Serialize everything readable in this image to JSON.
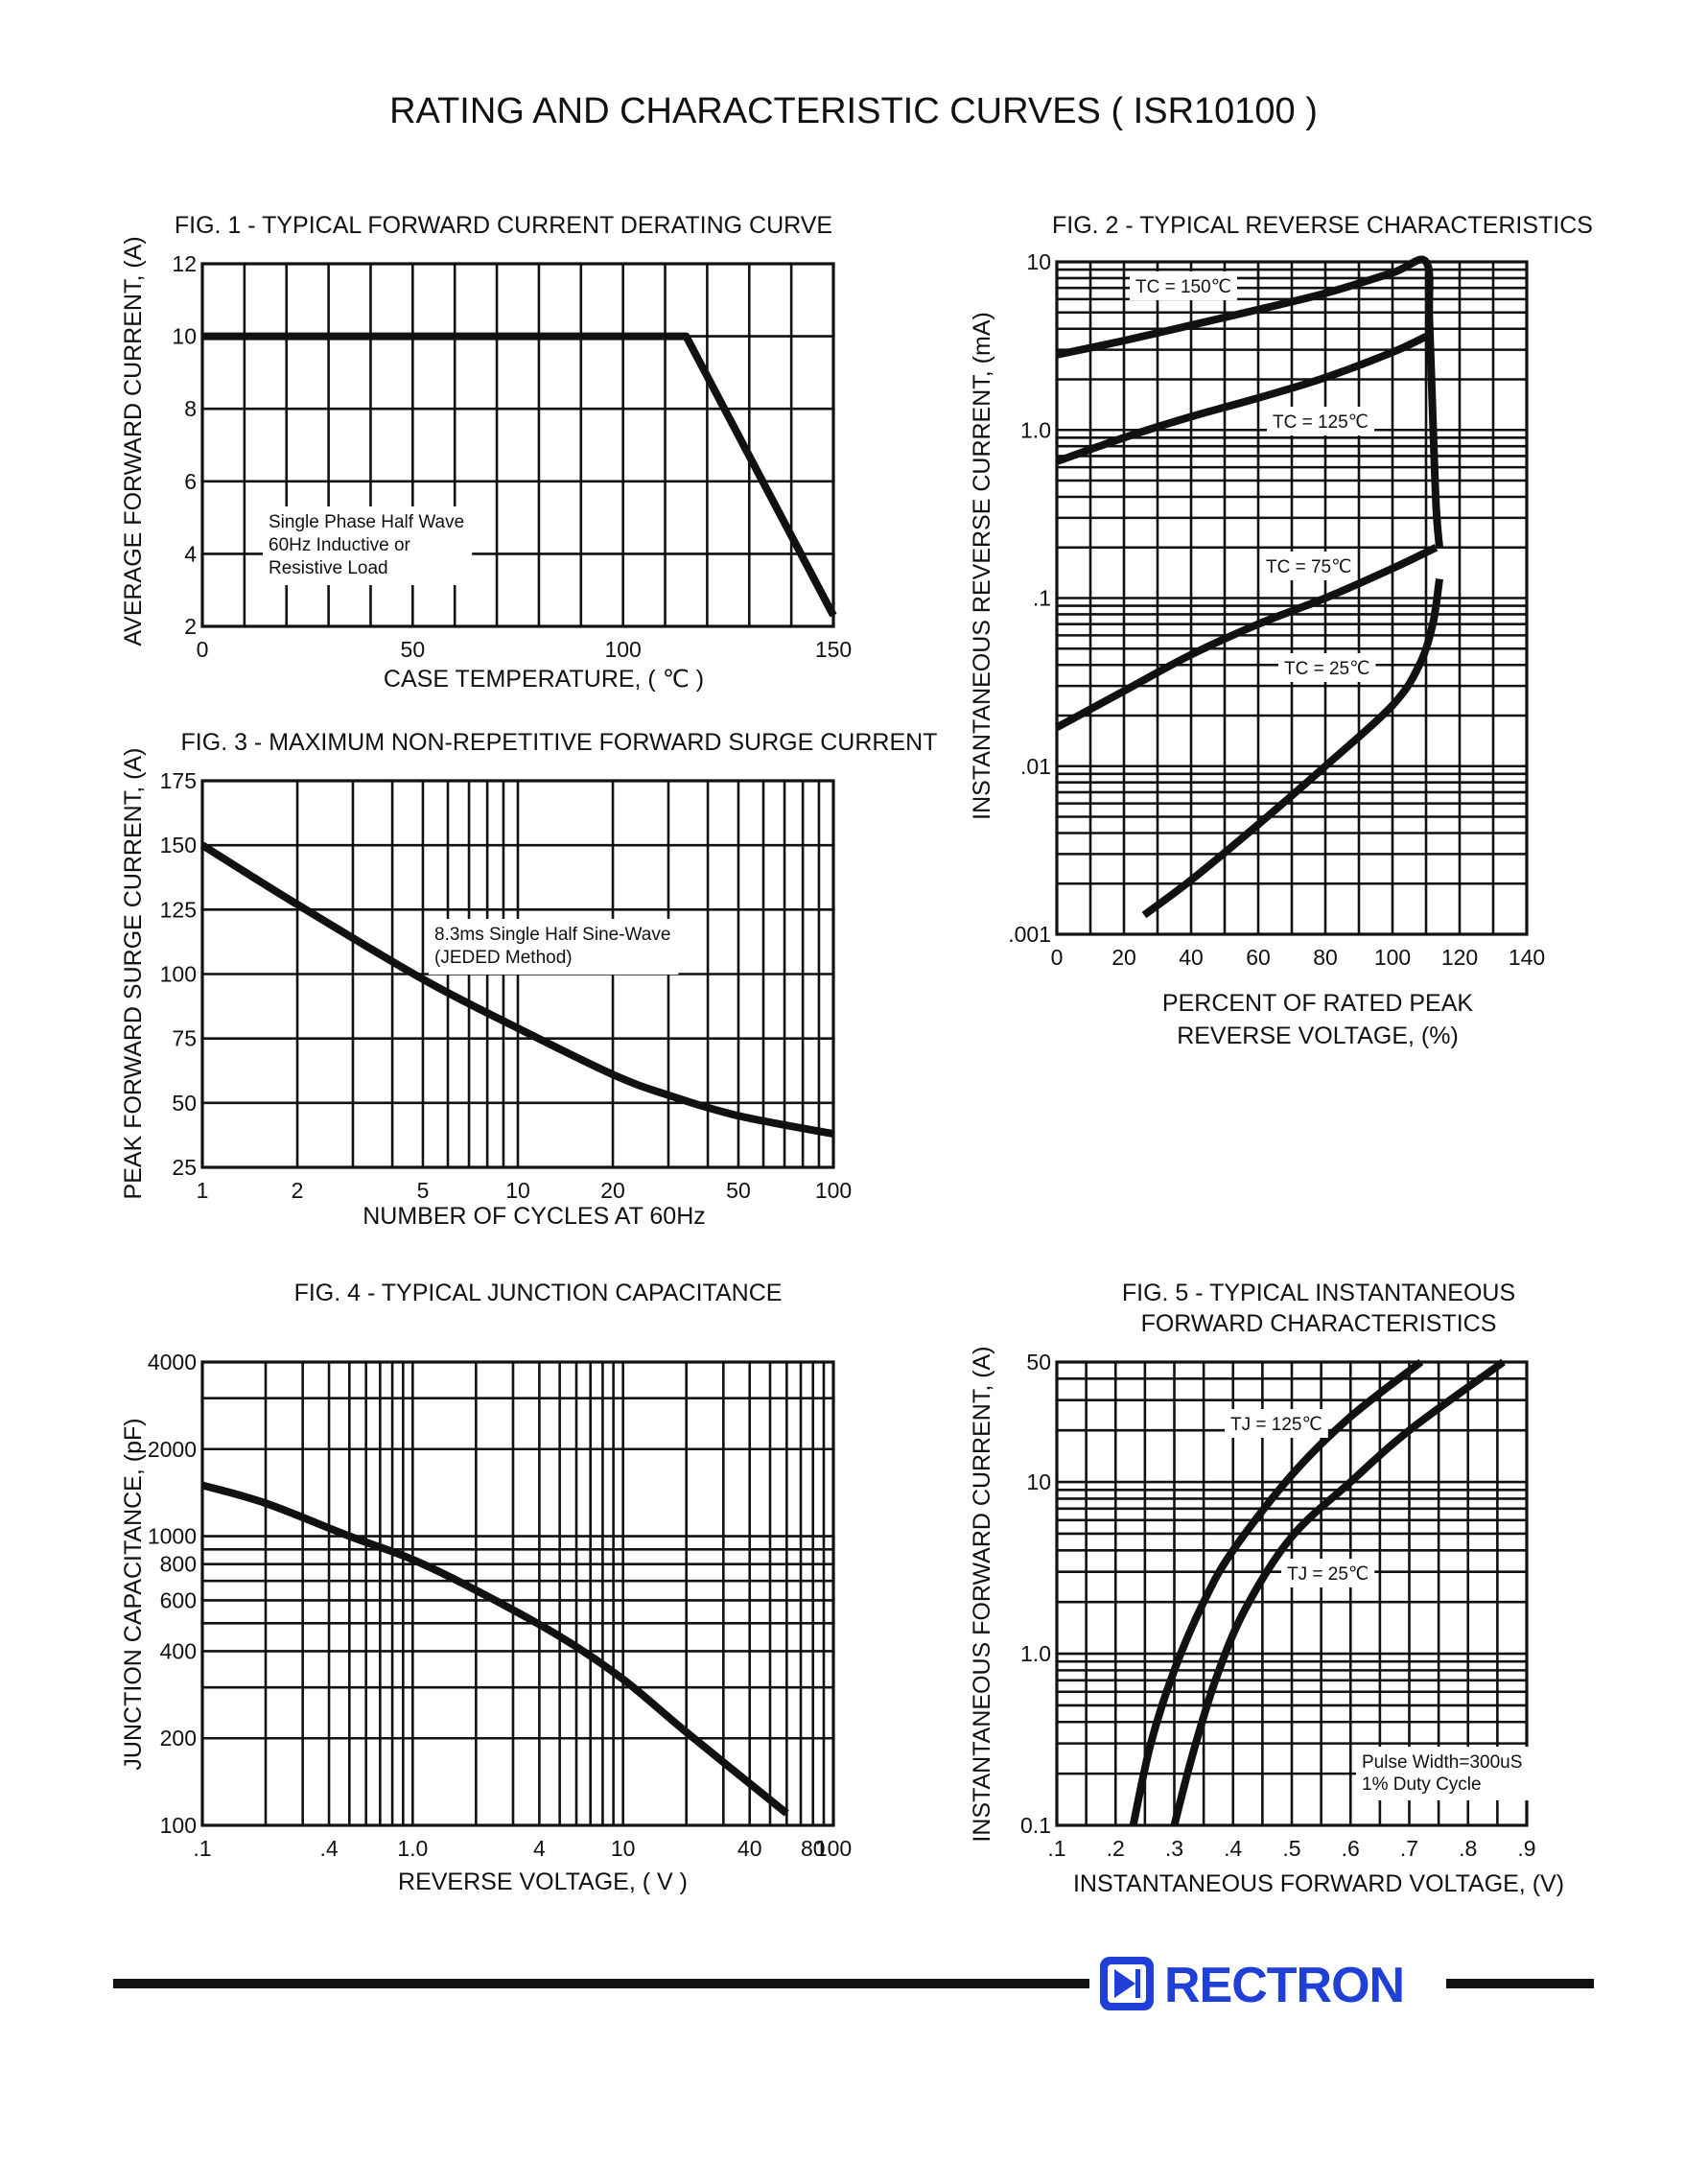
{
  "page": {
    "title": "RATING AND CHARACTERISTIC CURVES ( ISR10100 )",
    "brand": "RECTRON",
    "colors": {
      "ink": "#111111",
      "brand": "#1f3fd6",
      "paper": "#ffffff"
    }
  },
  "chart_data": [
    {
      "id": "fig1",
      "type": "line",
      "title": "FIG. 1 - TYPICAL FORWARD CURRENT DERATING CURVE",
      "xlabel": "CASE TEMPERATURE, ( ℃ )",
      "ylabel": "AVERAGE FORWARD CURRENT, (A)",
      "xscale": "linear",
      "yscale": "linear",
      "xlim": [
        0,
        150
      ],
      "ylim": [
        2,
        12
      ],
      "xticks": [
        0,
        50,
        100,
        150
      ],
      "yticks": [
        2,
        4,
        6,
        8,
        10,
        12
      ],
      "xgrid": [
        0,
        10,
        20,
        30,
        40,
        50,
        60,
        70,
        80,
        90,
        100,
        110,
        120,
        130,
        140,
        150
      ],
      "ygrid": [
        2,
        4,
        6,
        8,
        10,
        12
      ],
      "note": [
        "Single Phase Half Wave",
        "60Hz Inductive or",
        "Resistive Load"
      ],
      "series": [
        {
          "x": [
            0,
            115,
            150
          ],
          "y": [
            10,
            10,
            2.3
          ]
        }
      ]
    },
    {
      "id": "fig2",
      "type": "line",
      "title": "FIG. 2 - TYPICAL REVERSE CHARACTERISTICS",
      "xlabel": [
        "PERCENT OF RATED PEAK",
        "REVERSE VOLTAGE, (%)"
      ],
      "ylabel": "INSTANTANEOUS REVERSE CURRENT, (mA)",
      "xscale": "linear",
      "yscale": "log",
      "xlim": [
        0,
        140
      ],
      "ylim": [
        0.001,
        10
      ],
      "xticks": [
        0,
        20,
        40,
        60,
        80,
        100,
        120,
        140
      ],
      "xgrid": [
        0,
        10,
        20,
        30,
        40,
        50,
        60,
        70,
        80,
        90,
        100,
        110,
        120,
        130,
        140
      ],
      "yticks": [
        {
          "v": 10,
          "label": "10"
        },
        {
          "v": 1,
          "label": "1.0"
        },
        {
          "v": 0.1,
          "label": ".1"
        },
        {
          "v": 0.01,
          "label": ".01"
        },
        {
          "v": 0.001,
          "label": ".001"
        }
      ],
      "series": [
        {
          "name": "TC = 150℃",
          "x": [
            0,
            20,
            40,
            60,
            80,
            100,
            110,
            111,
            112,
            113,
            114
          ],
          "y": [
            2.8,
            3.4,
            4.2,
            5.2,
            6.5,
            8.6,
            10,
            4.5,
            1.2,
            0.35,
            0.2
          ]
        },
        {
          "name": "TC = 125℃",
          "x": [
            0,
            20,
            40,
            60,
            80,
            100,
            110
          ],
          "y": [
            0.65,
            0.9,
            1.2,
            1.55,
            2.05,
            2.9,
            3.6
          ]
        },
        {
          "name": "TC = 75℃",
          "x": [
            0,
            20,
            40,
            60,
            80,
            100,
            113
          ],
          "y": [
            0.017,
            0.028,
            0.046,
            0.07,
            0.1,
            0.15,
            0.2
          ]
        },
        {
          "name": "TC = 25℃",
          "x": [
            26,
            40,
            60,
            80,
            100,
            108,
            112,
            114
          ],
          "y": [
            0.0013,
            0.0021,
            0.0045,
            0.01,
            0.023,
            0.04,
            0.07,
            0.13
          ]
        }
      ]
    },
    {
      "id": "fig3",
      "type": "line",
      "title": "FIG. 3 - MAXIMUM NON-REPETITIVE FORWARD SURGE CURRENT",
      "xlabel": "NUMBER OF CYCLES AT 60Hz",
      "ylabel": "PEAK FORWARD SURGE CURRENT, (A)",
      "xscale": "log",
      "yscale": "linear",
      "xlim": [
        1,
        100
      ],
      "ylim": [
        25,
        175
      ],
      "xticks": [
        1,
        2,
        5,
        10,
        20,
        50,
        100
      ],
      "yticks": [
        25,
        50,
        75,
        100,
        125,
        150,
        175
      ],
      "note": [
        "8.3ms Single Half Sine-Wave",
        "(JEDED Method)"
      ],
      "series": [
        {
          "x": [
            1,
            2,
            5,
            10,
            20,
            30,
            50,
            100
          ],
          "y": [
            150,
            127,
            98,
            79,
            61,
            53,
            45,
            38
          ]
        }
      ]
    },
    {
      "id": "fig2b_unused",
      "type": "table",
      "values": []
    },
    {
      "id": "fig4",
      "type": "line",
      "title": "FIG. 4 - TYPICAL JUNCTION CAPACITANCE",
      "xlabel": "REVERSE VOLTAGE, ( V )",
      "ylabel": "JUNCTION CAPACITANCE, (pF)",
      "xscale": "log",
      "yscale": "log",
      "xlim": [
        0.1,
        100
      ],
      "ylim": [
        100,
        4000
      ],
      "xticks": [
        {
          "v": 0.1,
          "label": ".1"
        },
        {
          "v": 0.4,
          "label": ".4"
        },
        {
          "v": 1,
          "label": "1.0"
        },
        {
          "v": 4,
          "label": "4"
        },
        {
          "v": 10,
          "label": "10"
        },
        {
          "v": 40,
          "label": "40"
        },
        {
          "v": 80,
          "label": "80"
        },
        {
          "v": 100,
          "label": "100"
        }
      ],
      "yticks": [
        100,
        200,
        400,
        600,
        800,
        1000,
        2000,
        4000
      ],
      "series": [
        {
          "x": [
            0.1,
            0.2,
            0.5,
            1,
            2,
            5,
            10,
            20,
            60
          ],
          "y": [
            1500,
            1300,
            1000,
            830,
            650,
            450,
            320,
            210,
            110
          ]
        }
      ]
    },
    {
      "id": "fig5",
      "type": "line",
      "title": [
        "FIG. 5 - TYPICAL INSTANTANEOUS",
        "FORWARD CHARACTERISTICS"
      ],
      "xlabel": "INSTANTANEOUS FORWARD VOLTAGE, (V)",
      "ylabel": "INSTANTANEOUS FORWARD CURRENT, (A)",
      "xscale": "linear",
      "yscale": "log",
      "xlim": [
        0.1,
        0.9
      ],
      "ylim": [
        0.1,
        50
      ],
      "xticks": [
        {
          "v": 0.1,
          "label": ".1"
        },
        {
          "v": 0.2,
          "label": ".2"
        },
        {
          "v": 0.3,
          "label": ".3"
        },
        {
          "v": 0.4,
          "label": ".4"
        },
        {
          "v": 0.5,
          "label": ".5"
        },
        {
          "v": 0.6,
          "label": ".6"
        },
        {
          "v": 0.7,
          "label": ".7"
        },
        {
          "v": 0.8,
          "label": ".8"
        },
        {
          "v": 0.9,
          "label": ".9"
        }
      ],
      "xgrid": [
        0.1,
        0.15,
        0.2,
        0.25,
        0.3,
        0.35,
        0.4,
        0.45,
        0.5,
        0.55,
        0.6,
        0.65,
        0.7,
        0.75,
        0.8,
        0.85,
        0.9
      ],
      "yticks": [
        {
          "v": 0.1,
          "label": "0.1"
        },
        {
          "v": 1,
          "label": "1.0"
        },
        {
          "v": 10,
          "label": "10"
        },
        {
          "v": 50,
          "label": "50"
        }
      ],
      "note": [
        "Pulse Width=300uS",
        "1% Duty Cycle"
      ],
      "series": [
        {
          "name": "TJ = 125℃",
          "x": [
            0.23,
            0.26,
            0.3,
            0.35,
            0.4,
            0.5,
            0.6,
            0.72
          ],
          "y": [
            0.1,
            0.3,
            0.8,
            2,
            4,
            11,
            24,
            50
          ]
        },
        {
          "name": "TJ = 25℃",
          "x": [
            0.3,
            0.33,
            0.37,
            0.42,
            0.5,
            0.6,
            0.7,
            0.86
          ],
          "y": [
            0.1,
            0.25,
            0.7,
            1.8,
            4.8,
            10,
            20,
            50
          ]
        }
      ]
    }
  ]
}
